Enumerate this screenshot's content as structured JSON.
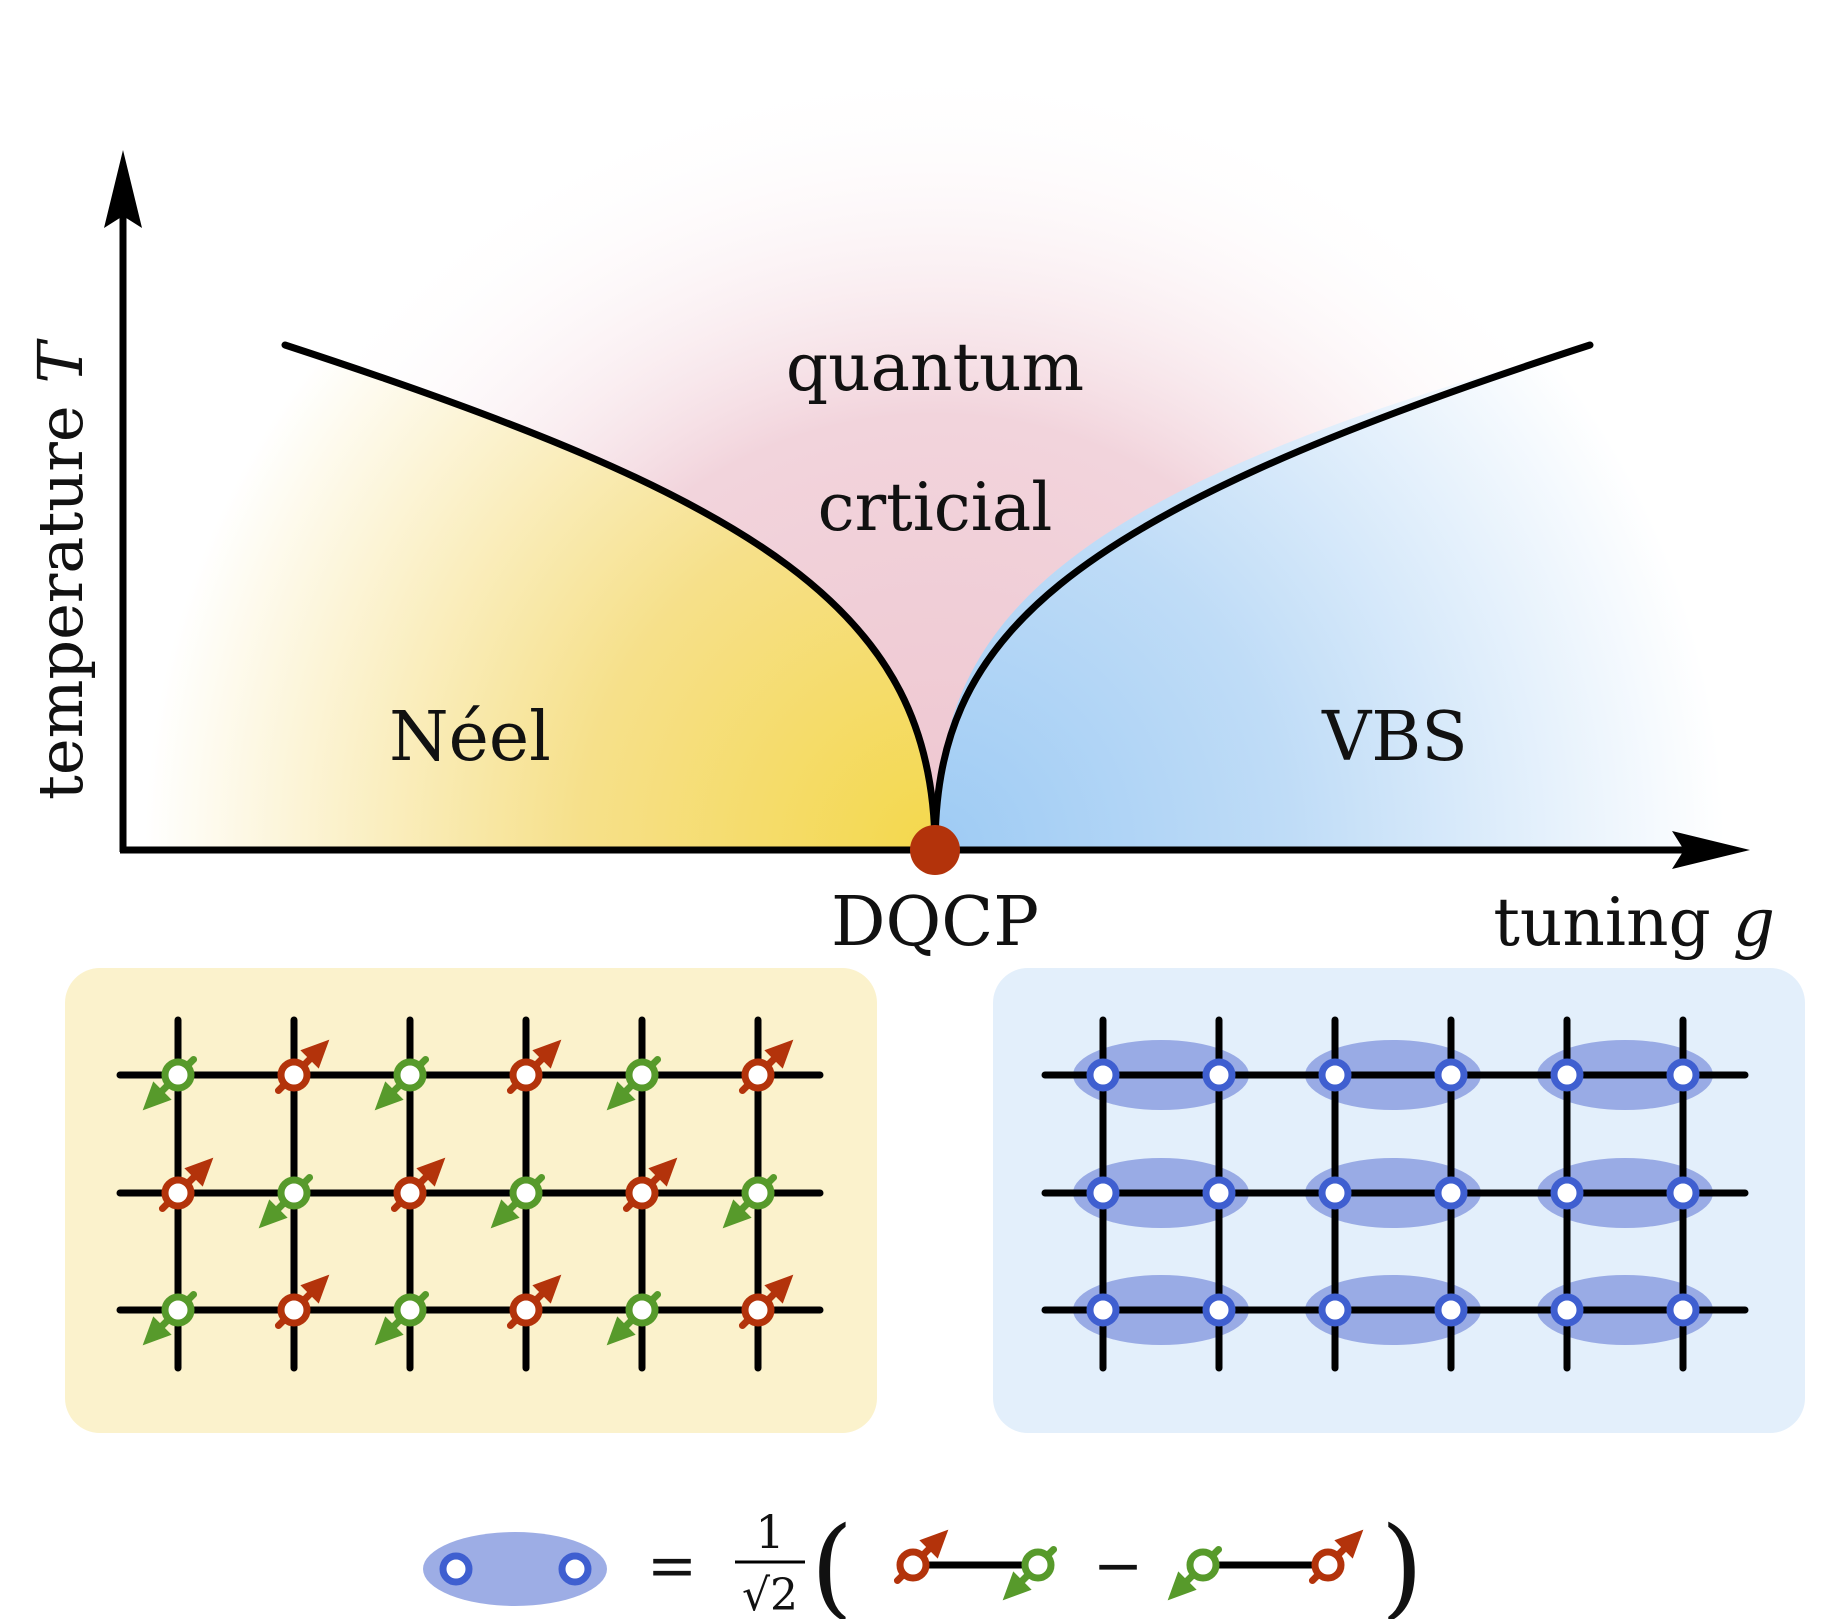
{
  "axes": {
    "y_label_text": "temperature",
    "y_label_symbol": "T",
    "x_label_text": "tuning",
    "x_label_symbol": "g"
  },
  "regions": {
    "critical_line1": "quantum",
    "critical_line2": "crticial",
    "neel": "Néel",
    "vbs": "VBS"
  },
  "critical_point_label": "DQCP",
  "equation": {
    "equals": "=",
    "numerator": "1",
    "denominator": "√2",
    "open_paren": "(",
    "minus": "−",
    "close_paren": ")"
  },
  "colors": {
    "neel_yellow": "#f4d84c",
    "critical_pink": "#eec6d0",
    "vbs_blue": "#9ecbf4",
    "neel_panel": "#fbf2cc",
    "vbs_panel": "#e3effb",
    "spin_up_red": "#b3330b",
    "spin_down_green": "#579a2b",
    "singlet_site_blue": "#3f5fd0",
    "singlet_bond_blob": "#8c9fe0",
    "dqcp_dot": "#b3330b"
  },
  "icons": {
    "up_spin": "up-spin-icon",
    "down_spin": "down-spin-icon",
    "singlet": "singlet-dimer-icon"
  }
}
